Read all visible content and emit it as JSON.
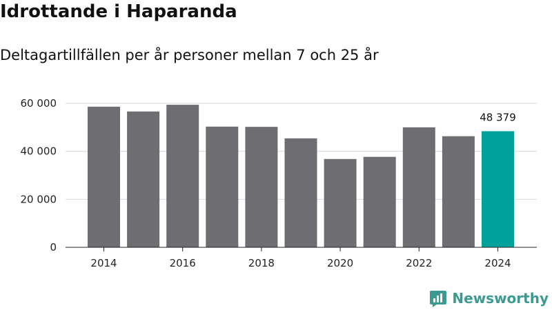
{
  "chart_data": {
    "type": "bar",
    "title": "Idrottande i Haparanda",
    "subtitle": "Deltagartillfällen per år personer mellan 7 och 25 år",
    "xlabel": "",
    "ylabel": "",
    "categories": [
      "2014",
      "2015",
      "2016",
      "2017",
      "2018",
      "2019",
      "2020",
      "2021",
      "2022",
      "2023",
      "2024"
    ],
    "values": [
      58600,
      56600,
      59400,
      50300,
      50200,
      45400,
      36800,
      37700,
      50000,
      46300,
      48379
    ],
    "ylim": [
      0,
      60000
    ],
    "yticks": [
      0,
      20000,
      40000,
      60000
    ],
    "ytick_labels": [
      "0",
      "20 000",
      "40 000",
      "60 000"
    ],
    "xtick_labels": [
      "2014",
      "2016",
      "2018",
      "2020",
      "2022",
      "2024"
    ],
    "highlight_label": "48 379",
    "grid": true,
    "bar_color": "#6e6d72",
    "highlight_color": "#00a19a",
    "grid_color": "#d9d9d9"
  },
  "branding": {
    "name": "Newsworthy",
    "icon": "newsworthy-logo-icon",
    "color": "#3d9a93"
  }
}
